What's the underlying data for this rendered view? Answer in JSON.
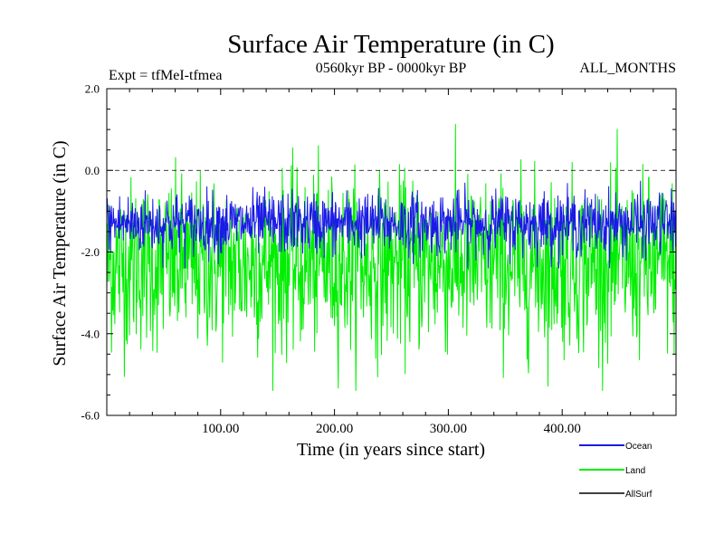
{
  "chart_data": {
    "type": "line",
    "title": "Surface Air Temperature (in C)",
    "subtitle_left": "Expt = tfMeI-tfmea",
    "subtitle_center": "0560kyr BP - 0000kyr BP",
    "subtitle_right": "ALL_MONTHS",
    "xlabel": "Time (in years since start)",
    "ylabel": "Surface Air Temperature (in C)",
    "xlim": [
      0,
      500
    ],
    "ylim": [
      -6,
      2
    ],
    "x_ticks": [
      100,
      200,
      300,
      400
    ],
    "x_tick_labels": [
      "100.00",
      "200.00",
      "300.00",
      "400.00"
    ],
    "y_ticks": [
      2,
      0,
      -2,
      -4,
      -6
    ],
    "y_tick_labels": [
      "2.0",
      "0.0",
      "-2.0",
      "-4.0",
      "-6.0"
    ],
    "reference_line": {
      "y": 0,
      "style": "dashed"
    },
    "legend_position": "bottom-right",
    "series": [
      {
        "name": "Ocean",
        "color": "#1a1ae6",
        "mean": -1.3,
        "typical_range": [
          -2.4,
          -0.2
        ]
      },
      {
        "name": "Land",
        "color": "#00ee00",
        "mean": -2.3,
        "typical_range": [
          -5.4,
          1.2
        ]
      },
      {
        "name": "AllSurf",
        "color": "#000000"
      }
    ]
  }
}
